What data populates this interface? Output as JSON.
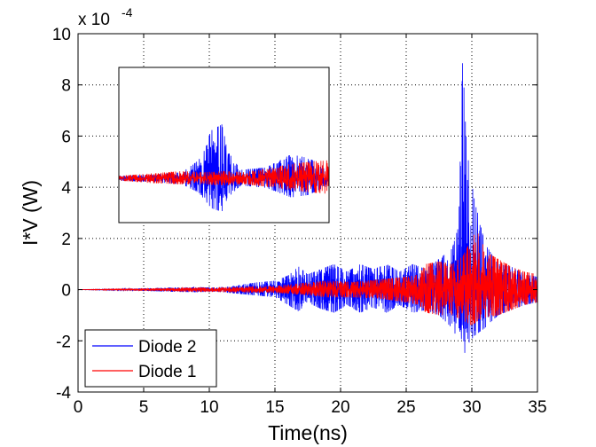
{
  "chart_data": {
    "type": "line",
    "title": "",
    "xlabel": "Time(ns)",
    "ylabel": "I*V (W)",
    "y_exponent_label": "x 10",
    "y_exponent_power": "-4",
    "xlim": [
      0,
      35
    ],
    "ylim": [
      -4,
      10
    ],
    "x_ticks": [
      0,
      5,
      10,
      15,
      20,
      25,
      30,
      35
    ],
    "y_ticks": [
      -4,
      -2,
      0,
      2,
      4,
      6,
      8,
      10
    ],
    "x_tick_labels": [
      "0",
      "5",
      "10",
      "15",
      "20",
      "25",
      "30",
      "35"
    ],
    "y_tick_labels": [
      "-4",
      "-2",
      "0",
      "2",
      "4",
      "6",
      "8",
      "10"
    ],
    "grid": true,
    "legend_position": "bottom-left",
    "series": [
      {
        "name": "Diode 2",
        "color": "#0000ff",
        "envelope": [
          {
            "x": 0,
            "top": 0.0,
            "bottom": 0.0
          },
          {
            "x": 3,
            "top": 0.02,
            "bottom": -0.02
          },
          {
            "x": 5,
            "top": 0.05,
            "bottom": -0.05
          },
          {
            "x": 7,
            "top": 0.08,
            "bottom": -0.08
          },
          {
            "x": 9,
            "top": 0.1,
            "bottom": -0.1
          },
          {
            "x": 10.5,
            "top": 0.08,
            "bottom": -0.08
          },
          {
            "x": 12,
            "top": 0.15,
            "bottom": -0.15
          },
          {
            "x": 13,
            "top": 0.25,
            "bottom": -0.2
          },
          {
            "x": 14,
            "top": 0.3,
            "bottom": -0.25
          },
          {
            "x": 15,
            "top": 0.35,
            "bottom": -0.3
          },
          {
            "x": 16,
            "top": 0.55,
            "bottom": -0.6
          },
          {
            "x": 16.8,
            "top": 0.9,
            "bottom": -0.85
          },
          {
            "x": 17.5,
            "top": 0.6,
            "bottom": -0.5
          },
          {
            "x": 18.5,
            "top": 0.8,
            "bottom": -0.75
          },
          {
            "x": 19.5,
            "top": 1.0,
            "bottom": -0.9
          },
          {
            "x": 20.5,
            "top": 0.7,
            "bottom": -0.6
          },
          {
            "x": 21.5,
            "top": 1.0,
            "bottom": -0.9
          },
          {
            "x": 22.5,
            "top": 0.8,
            "bottom": -0.7
          },
          {
            "x": 23.5,
            "top": 1.0,
            "bottom": -0.9
          },
          {
            "x": 24.5,
            "top": 0.7,
            "bottom": -0.6
          },
          {
            "x": 25.5,
            "top": 1.0,
            "bottom": -0.9
          },
          {
            "x": 26.5,
            "top": 0.8,
            "bottom": -0.8
          },
          {
            "x": 27.5,
            "top": 1.2,
            "bottom": -1.0
          },
          {
            "x": 28.5,
            "top": 1.6,
            "bottom": -1.5
          },
          {
            "x": 29,
            "top": 2.5,
            "bottom": -2.0
          },
          {
            "x": 29.3,
            "top": 9.1,
            "bottom": -2.8
          },
          {
            "x": 29.6,
            "top": 5.5,
            "bottom": -2.2
          },
          {
            "x": 30.2,
            "top": 3.5,
            "bottom": -1.8
          },
          {
            "x": 31,
            "top": 1.8,
            "bottom": -1.5
          },
          {
            "x": 32,
            "top": 1.0,
            "bottom": -1.0
          },
          {
            "x": 33,
            "top": 0.9,
            "bottom": -0.8
          },
          {
            "x": 34,
            "top": 0.6,
            "bottom": -0.6
          },
          {
            "x": 35,
            "top": 0.5,
            "bottom": -0.5
          }
        ]
      },
      {
        "name": "Diode 1",
        "color": "#ff0000",
        "envelope": [
          {
            "x": 0,
            "top": 0.0,
            "bottom": 0.0
          },
          {
            "x": 3,
            "top": 0.02,
            "bottom": -0.02
          },
          {
            "x": 6,
            "top": 0.05,
            "bottom": -0.05
          },
          {
            "x": 9,
            "top": 0.08,
            "bottom": -0.08
          },
          {
            "x": 12,
            "top": 0.1,
            "bottom": -0.1
          },
          {
            "x": 15,
            "top": 0.15,
            "bottom": -0.12
          },
          {
            "x": 17,
            "top": 0.25,
            "bottom": -0.2
          },
          {
            "x": 19,
            "top": 0.35,
            "bottom": -0.3
          },
          {
            "x": 21,
            "top": 0.3,
            "bottom": -0.3
          },
          {
            "x": 23,
            "top": 0.4,
            "bottom": -0.35
          },
          {
            "x": 25,
            "top": 0.5,
            "bottom": -0.5
          },
          {
            "x": 26,
            "top": 0.6,
            "bottom": -0.6
          },
          {
            "x": 26.5,
            "top": 1.0,
            "bottom": -0.9
          },
          {
            "x": 27.5,
            "top": 1.1,
            "bottom": -1.0
          },
          {
            "x": 28.5,
            "top": 1.0,
            "bottom": -1.0
          },
          {
            "x": 29.3,
            "top": 1.3,
            "bottom": -1.2
          },
          {
            "x": 30,
            "top": 2.0,
            "bottom": -1.4
          },
          {
            "x": 30.5,
            "top": 2.4,
            "bottom": -1.2
          },
          {
            "x": 31,
            "top": 1.5,
            "bottom": -1.1
          },
          {
            "x": 32,
            "top": 1.2,
            "bottom": -1.0
          },
          {
            "x": 33,
            "top": 0.9,
            "bottom": -0.8
          },
          {
            "x": 34,
            "top": 0.7,
            "bottom": -0.6
          },
          {
            "x": 35,
            "top": 0.6,
            "bottom": -0.5
          }
        ]
      }
    ],
    "inset": {
      "series": [
        {
          "name": "Diode 2",
          "color": "#0000ff",
          "envelope": [
            {
              "t": 0.0,
              "top": 0.2,
              "bottom": -0.2
            },
            {
              "t": 0.15,
              "top": 0.3,
              "bottom": -0.3
            },
            {
              "t": 0.3,
              "top": 0.5,
              "bottom": -0.5
            },
            {
              "t": 0.38,
              "top": 1.5,
              "bottom": -1.2
            },
            {
              "t": 0.44,
              "top": 4.0,
              "bottom": -2.5
            },
            {
              "t": 0.49,
              "top": 4.5,
              "bottom": -2.8
            },
            {
              "t": 0.52,
              "top": 2.2,
              "bottom": -1.6
            },
            {
              "t": 0.58,
              "top": 0.7,
              "bottom": -0.6
            },
            {
              "t": 0.7,
              "top": 0.9,
              "bottom": -0.8
            },
            {
              "t": 0.82,
              "top": 2.0,
              "bottom": -1.6
            },
            {
              "t": 0.9,
              "top": 1.7,
              "bottom": -1.4
            },
            {
              "t": 1.0,
              "top": 0.8,
              "bottom": -0.6
            }
          ]
        },
        {
          "name": "Diode 1",
          "color": "#ff0000",
          "envelope": [
            {
              "t": 0.0,
              "top": 0.2,
              "bottom": -0.2
            },
            {
              "t": 0.15,
              "top": 0.4,
              "bottom": -0.4
            },
            {
              "t": 0.3,
              "top": 0.6,
              "bottom": -0.5
            },
            {
              "t": 0.4,
              "top": 0.5,
              "bottom": -0.5
            },
            {
              "t": 0.5,
              "top": 0.6,
              "bottom": -0.6
            },
            {
              "t": 0.6,
              "top": 0.5,
              "bottom": -0.5
            },
            {
              "t": 0.7,
              "top": 0.8,
              "bottom": -0.7
            },
            {
              "t": 0.82,
              "top": 1.2,
              "bottom": -1.0
            },
            {
              "t": 0.92,
              "top": 1.4,
              "bottom": -1.2
            },
            {
              "t": 1.0,
              "top": 1.5,
              "bottom": -1.3
            }
          ]
        }
      ]
    }
  }
}
